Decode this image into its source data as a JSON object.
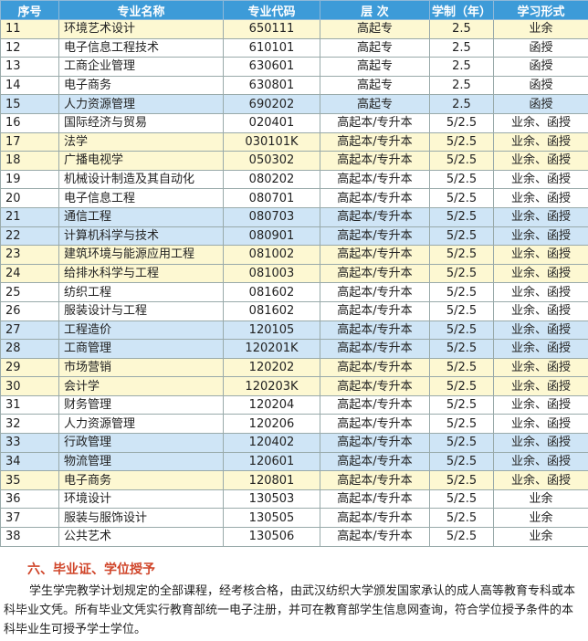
{
  "table": {
    "header": [
      "序号",
      "专业名称",
      "专业代码",
      "层 次",
      "学制（年）",
      "学习形式"
    ],
    "header_color": "#3d9bd8",
    "rows": [
      [
        "11",
        "环境艺术设计",
        "650111",
        "高起专",
        "2.5",
        "业余"
      ],
      [
        "12",
        "电子信息工程技术",
        "610101",
        "高起专",
        "2.5",
        "函授"
      ],
      [
        "13",
        "工商企业管理",
        "630601",
        "高起专",
        "2.5",
        "函授"
      ],
      [
        "14",
        "电子商务",
        "630801",
        "高起专",
        "2.5",
        "函授"
      ],
      [
        "15",
        "人力资源管理",
        "690202",
        "高起专",
        "2.5",
        "函授"
      ],
      [
        "16",
        "国际经济与贸易",
        "020401",
        "高起本/专升本",
        "5/2.5",
        "业余、函授"
      ],
      [
        "17",
        "法学",
        "030101K",
        "高起本/专升本",
        "5/2.5",
        "业余、函授"
      ],
      [
        "18",
        "广播电视学",
        "050302",
        "高起本/专升本",
        "5/2.5",
        "业余、函授"
      ],
      [
        "19",
        "机械设计制造及其自动化",
        "080202",
        "高起本/专升本",
        "5/2.5",
        "业余、函授"
      ],
      [
        "20",
        "电子信息工程",
        "080701",
        "高起本/专升本",
        "5/2.5",
        "业余、函授"
      ],
      [
        "21",
        "通信工程",
        "080703",
        "高起本/专升本",
        "5/2.5",
        "业余、函授"
      ],
      [
        "22",
        "计算机科学与技术",
        "080901",
        "高起本/专升本",
        "5/2.5",
        "业余、函授"
      ],
      [
        "23",
        "建筑环境与能源应用工程",
        "081002",
        "高起本/专升本",
        "5/2.5",
        "业余、函授"
      ],
      [
        "24",
        "给排水科学与工程",
        "081003",
        "高起本/专升本",
        "5/2.5",
        "业余、函授"
      ],
      [
        "25",
        "纺织工程",
        "081602",
        "高起本/专升本",
        "5/2.5",
        "业余、函授"
      ],
      [
        "26",
        "服装设计与工程",
        "081602",
        "高起本/专升本",
        "5/2.5",
        "业余、函授"
      ],
      [
        "27",
        "工程造价",
        "120105",
        "高起本/专升本",
        "5/2.5",
        "业余、函授"
      ],
      [
        "28",
        "工商管理",
        "120201K",
        "高起本/专升本",
        "5/2.5",
        "业余、函授"
      ],
      [
        "29",
        "市场营销",
        "120202",
        "高起本/专升本",
        "5/2.5",
        "业余、函授"
      ],
      [
        "30",
        "会计学",
        "120203K",
        "高起本/专升本",
        "5/2.5",
        "业余、函授"
      ],
      [
        "31",
        "财务管理",
        "120204",
        "高起本/专升本",
        "5/2.5",
        "业余、函授"
      ],
      [
        "32",
        "人力资源管理",
        "120206",
        "高起本/专升本",
        "5/2.5",
        "业余、函授"
      ],
      [
        "33",
        "行政管理",
        "120402",
        "高起本/专升本",
        "5/2.5",
        "业余、函授"
      ],
      [
        "34",
        "物流管理",
        "120601",
        "高起本/专升本",
        "5/2.5",
        "业余、函授"
      ],
      [
        "35",
        "电子商务",
        "120801",
        "高起本/专升本",
        "5/2.5",
        "业余、函授"
      ],
      [
        "36",
        "环境设计",
        "130503",
        "高起本/专升本",
        "5/2.5",
        "业余"
      ],
      [
        "37",
        "服装与服饰设计",
        "130505",
        "高起本/专升本",
        "5/2.5",
        "业余"
      ],
      [
        "38",
        "公共艺术",
        "130506",
        "高起本/专升本",
        "5/2.5",
        "业余"
      ]
    ],
    "row_colors": [
      "#fdf8d2",
      "#ffffff",
      "#ffffff",
      "#ffffff",
      "#cfe5f6",
      "#ffffff",
      "#fdf8d2",
      "#fdf8d2",
      "#ffffff",
      "#ffffff",
      "#cfe5f6",
      "#cfe5f6",
      "#fdf8d2",
      "#fdf8d2",
      "#ffffff",
      "#ffffff",
      "#cfe5f6",
      "#cfe5f6",
      "#fdf8d2",
      "#fdf8d2",
      "#ffffff",
      "#ffffff",
      "#cfe5f6",
      "#cfe5f6",
      "#fdf8d2",
      "#ffffff",
      "#ffffff",
      "#ffffff"
    ]
  },
  "section": {
    "title": "六、毕业证、学位授予",
    "text": "学生学完教学计划规定的全部课程，经考核合格，由武汉纺织大学颁发国家承认的成人高等教育专科或本科毕业文凭。所有毕业文凭实行教育部统一电子注册，并可在教育部学生信息网查询，符合学位授予条件的本科毕业生可授予学士学位。"
  }
}
